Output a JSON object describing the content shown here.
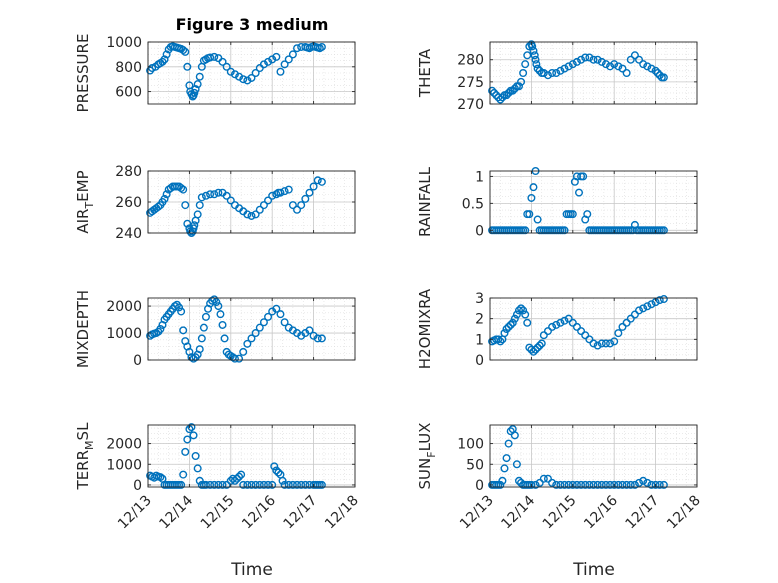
{
  "figure": {
    "title": "Figure 3 medium",
    "xlabel": "Time",
    "marker_color": "#0072BD",
    "axis_color": "#262626",
    "grid_color": "#c8c8c8"
  },
  "chart_data": [
    {
      "type": "scatter",
      "ylabel": "PRESSURE",
      "xlim": [
        0,
        5
      ],
      "ylim": [
        500,
        1000
      ],
      "xticks": [
        0,
        1,
        2,
        3,
        4,
        5
      ],
      "yticks": [
        600,
        800,
        1000
      ],
      "xticklabels": [
        "",
        "",
        "",
        "",
        "",
        ""
      ],
      "x": [
        0.05,
        0.1,
        0.18,
        0.25,
        0.3,
        0.35,
        0.4,
        0.45,
        0.5,
        0.55,
        0.6,
        0.65,
        0.7,
        0.75,
        0.8,
        0.85,
        0.9,
        0.95,
        1.0,
        1.02,
        1.05,
        1.08,
        1.1,
        1.12,
        1.15,
        1.2,
        1.25,
        1.3,
        1.35,
        1.4,
        1.45,
        1.5,
        1.6,
        1.7,
        1.8,
        1.9,
        2.0,
        2.1,
        2.2,
        2.3,
        2.4,
        2.5,
        2.6,
        2.7,
        2.8,
        2.9,
        3.0,
        3.1,
        3.2,
        3.3,
        3.4,
        3.5,
        3.6,
        3.7,
        3.8,
        3.85,
        3.9,
        3.95,
        4.0,
        4.05,
        4.1,
        4.15,
        4.2
      ],
      "y": [
        770,
        790,
        800,
        820,
        830,
        840,
        860,
        900,
        940,
        960,
        965,
        960,
        955,
        950,
        945,
        935,
        920,
        800,
        650,
        600,
        580,
        560,
        570,
        590,
        620,
        660,
        720,
        800,
        850,
        860,
        870,
        875,
        880,
        870,
        840,
        800,
        760,
        740,
        720,
        700,
        690,
        710,
        750,
        790,
        820,
        840,
        860,
        880,
        760,
        820,
        860,
        900,
        950,
        960,
        960,
        955,
        950,
        960,
        965,
        960,
        955,
        950,
        960
      ]
    },
    {
      "type": "scatter",
      "ylabel": "THETA",
      "xlim": [
        0,
        5
      ],
      "ylim": [
        270,
        284
      ],
      "xticks": [
        0,
        1,
        2,
        3,
        4,
        5
      ],
      "yticks": [
        270,
        275,
        280
      ],
      "xticklabels": [
        "",
        "",
        "",
        "",
        "",
        ""
      ],
      "x": [
        0.05,
        0.1,
        0.15,
        0.2,
        0.25,
        0.3,
        0.35,
        0.4,
        0.45,
        0.5,
        0.55,
        0.6,
        0.65,
        0.7,
        0.75,
        0.8,
        0.85,
        0.9,
        0.95,
        1.0,
        1.02,
        1.05,
        1.08,
        1.1,
        1.12,
        1.15,
        1.2,
        1.25,
        1.3,
        1.4,
        1.5,
        1.6,
        1.7,
        1.8,
        1.9,
        2.0,
        2.1,
        2.2,
        2.3,
        2.4,
        2.5,
        2.6,
        2.7,
        2.8,
        2.9,
        3.0,
        3.1,
        3.2,
        3.3,
        3.4,
        3.5,
        3.6,
        3.7,
        3.8,
        3.9,
        4.0,
        4.05,
        4.1,
        4.15,
        4.2
      ],
      "y": [
        273,
        272.5,
        272,
        271.5,
        271,
        271.5,
        272,
        272,
        272.5,
        273,
        273,
        273.5,
        274,
        274,
        275,
        277,
        279,
        281,
        283,
        283.5,
        283,
        282,
        281,
        280,
        279,
        278,
        277.5,
        277,
        277,
        276.5,
        277,
        277,
        277.5,
        278,
        278.5,
        279,
        279.5,
        280,
        280.5,
        280.5,
        280,
        280,
        279.5,
        279,
        278.5,
        279,
        278.5,
        278,
        277,
        280,
        281,
        280,
        279,
        278.5,
        278,
        277.5,
        277,
        276.5,
        276,
        276
      ]
    },
    {
      "type": "scatter",
      "ylabel": "AIR_TEMP",
      "xlim": [
        0,
        5
      ],
      "ylim": [
        240,
        280
      ],
      "xticks": [
        0,
        1,
        2,
        3,
        4,
        5
      ],
      "yticks": [
        240,
        260,
        280
      ],
      "xticklabels": [
        "",
        "",
        "",
        "",
        "",
        ""
      ],
      "x": [
        0.05,
        0.1,
        0.15,
        0.2,
        0.25,
        0.3,
        0.35,
        0.4,
        0.45,
        0.5,
        0.55,
        0.6,
        0.65,
        0.7,
        0.75,
        0.8,
        0.85,
        0.9,
        0.95,
        1.0,
        1.02,
        1.05,
        1.08,
        1.1,
        1.12,
        1.15,
        1.2,
        1.25,
        1.3,
        1.4,
        1.5,
        1.6,
        1.7,
        1.8,
        1.9,
        2.0,
        2.1,
        2.2,
        2.3,
        2.4,
        2.5,
        2.6,
        2.7,
        2.8,
        2.9,
        3.0,
        3.1,
        3.15,
        3.2,
        3.3,
        3.4,
        3.5,
        3.6,
        3.7,
        3.8,
        3.9,
        4.0,
        4.1,
        4.2
      ],
      "y": [
        253,
        254,
        255,
        256,
        257,
        258,
        260,
        262,
        265,
        268,
        269,
        270,
        270,
        270,
        270,
        269,
        268,
        258,
        246,
        243,
        241,
        240,
        241,
        243,
        245,
        248,
        252,
        258,
        263,
        264,
        265,
        265,
        266,
        266,
        264,
        261,
        258,
        256,
        254,
        252,
        251,
        252,
        255,
        258,
        261,
        264,
        265,
        266,
        266,
        267,
        268,
        258,
        255,
        258,
        262,
        266,
        270,
        274,
        273
      ]
    },
    {
      "type": "scatter",
      "ylabel": "RAINFALL",
      "xlim": [
        0,
        5
      ],
      "ylim": [
        -0.05,
        1.1
      ],
      "xticks": [
        0,
        1,
        2,
        3,
        4,
        5
      ],
      "yticks": [
        0,
        0.5,
        1
      ],
      "xticklabels": [
        "",
        "",
        "",
        "",
        "",
        ""
      ],
      "x": [
        0.05,
        0.1,
        0.15,
        0.2,
        0.25,
        0.3,
        0.35,
        0.4,
        0.45,
        0.5,
        0.55,
        0.6,
        0.65,
        0.7,
        0.75,
        0.8,
        0.85,
        0.9,
        0.95,
        1.0,
        1.05,
        1.1,
        1.15,
        1.2,
        1.25,
        1.3,
        1.35,
        1.4,
        1.45,
        1.5,
        1.55,
        1.6,
        1.65,
        1.7,
        1.75,
        1.8,
        1.85,
        1.9,
        1.95,
        2.0,
        2.05,
        2.1,
        2.15,
        2.2,
        2.25,
        2.3,
        2.35,
        2.4,
        2.45,
        2.5,
        2.55,
        2.6,
        2.65,
        2.7,
        2.75,
        2.8,
        2.85,
        2.9,
        2.95,
        3.0,
        3.05,
        3.1,
        3.15,
        3.2,
        3.25,
        3.3,
        3.35,
        3.4,
        3.45,
        3.5,
        3.55,
        3.6,
        3.65,
        3.7,
        3.75,
        3.8,
        3.85,
        3.9,
        3.95,
        4.0,
        4.05,
        4.1,
        4.15,
        4.2
      ],
      "y": [
        0,
        0,
        0,
        0,
        0,
        0,
        0,
        0,
        0,
        0,
        0,
        0,
        0,
        0,
        0,
        0,
        0,
        0.3,
        0.3,
        0.6,
        0.8,
        1.1,
        0.2,
        0,
        0,
        0,
        0,
        0,
        0,
        0,
        0,
        0,
        0,
        0,
        0,
        0,
        0.3,
        0.3,
        0.3,
        0.3,
        0.9,
        1.0,
        0.7,
        1.0,
        1.0,
        0.2,
        0.3,
        0,
        0,
        0,
        0,
        0,
        0,
        0,
        0,
        0,
        0,
        0,
        0,
        0,
        0,
        0,
        0,
        0,
        0,
        0,
        0,
        0,
        0,
        0.1,
        0,
        0,
        0,
        0,
        0,
        0,
        0,
        0,
        0,
        0,
        0,
        0,
        0,
        0
      ]
    },
    {
      "type": "scatter",
      "ylabel": "MIXDEPTH",
      "xlim": [
        0,
        5
      ],
      "ylim": [
        0,
        2300
      ],
      "xticks": [
        0,
        1,
        2,
        3,
        4,
        5
      ],
      "yticks": [
        0,
        1000,
        2000
      ],
      "xticklabels": [
        "",
        "",
        "",
        "",
        "",
        ""
      ],
      "x": [
        0.05,
        0.1,
        0.15,
        0.2,
        0.25,
        0.3,
        0.35,
        0.4,
        0.45,
        0.5,
        0.55,
        0.6,
        0.65,
        0.7,
        0.75,
        0.8,
        0.85,
        0.9,
        0.95,
        1.0,
        1.05,
        1.1,
        1.15,
        1.2,
        1.25,
        1.3,
        1.35,
        1.4,
        1.45,
        1.5,
        1.55,
        1.6,
        1.65,
        1.7,
        1.75,
        1.8,
        1.85,
        1.9,
        1.95,
        2.0,
        2.05,
        2.1,
        2.2,
        2.3,
        2.4,
        2.5,
        2.6,
        2.7,
        2.8,
        2.9,
        3.0,
        3.1,
        3.2,
        3.3,
        3.4,
        3.5,
        3.6,
        3.7,
        3.8,
        3.9,
        4.0,
        4.1,
        4.2
      ],
      "y": [
        900,
        950,
        980,
        1000,
        1050,
        1150,
        1300,
        1500,
        1600,
        1700,
        1800,
        1900,
        2000,
        2050,
        1950,
        1800,
        1100,
        700,
        500,
        300,
        100,
        50,
        100,
        200,
        400,
        800,
        1200,
        1600,
        1900,
        2100,
        2200,
        2250,
        2150,
        2000,
        1700,
        1300,
        800,
        300,
        200,
        150,
        100,
        50,
        50,
        300,
        600,
        800,
        1000,
        1200,
        1400,
        1600,
        1800,
        1900,
        1700,
        1400,
        1200,
        1100,
        1000,
        900,
        1000,
        1100,
        900,
        800,
        800
      ]
    },
    {
      "type": "scatter",
      "ylabel": "H2OMIXRA",
      "xlim": [
        0,
        5
      ],
      "ylim": [
        0,
        3
      ],
      "xticks": [
        0,
        1,
        2,
        3,
        4,
        5
      ],
      "yticks": [
        0,
        1,
        2,
        3
      ],
      "xticklabels": [
        "",
        "",
        "",
        "",
        "",
        ""
      ],
      "x": [
        0.05,
        0.1,
        0.15,
        0.2,
        0.25,
        0.3,
        0.35,
        0.4,
        0.45,
        0.5,
        0.55,
        0.6,
        0.65,
        0.7,
        0.75,
        0.8,
        0.85,
        0.9,
        0.95,
        1.0,
        1.05,
        1.1,
        1.15,
        1.2,
        1.25,
        1.3,
        1.4,
        1.5,
        1.6,
        1.7,
        1.8,
        1.9,
        2.0,
        2.1,
        2.2,
        2.3,
        2.4,
        2.5,
        2.6,
        2.7,
        2.8,
        2.9,
        3.0,
        3.1,
        3.2,
        3.3,
        3.4,
        3.5,
        3.6,
        3.7,
        3.8,
        3.9,
        4.0,
        4.1,
        4.2
      ],
      "y": [
        0.9,
        0.95,
        1.0,
        1.0,
        0.9,
        1.0,
        1.3,
        1.5,
        1.6,
        1.7,
        1.8,
        2.0,
        2.2,
        2.4,
        2.5,
        2.4,
        2.2,
        1.8,
        0.6,
        0.5,
        0.4,
        0.5,
        0.6,
        0.7,
        0.8,
        1.2,
        1.4,
        1.6,
        1.7,
        1.8,
        1.9,
        2.0,
        1.8,
        1.6,
        1.4,
        1.2,
        1.0,
        0.8,
        0.7,
        0.8,
        0.8,
        0.8,
        0.9,
        1.3,
        1.6,
        1.8,
        2.0,
        2.2,
        2.4,
        2.5,
        2.6,
        2.7,
        2.8,
        2.9,
        2.95
      ]
    },
    {
      "type": "scatter",
      "ylabel": "TERR_MSL",
      "xlim": [
        0,
        5
      ],
      "ylim": [
        -100,
        2900
      ],
      "xticks": [
        0,
        1,
        2,
        3,
        4,
        5
      ],
      "yticks": [
        0,
        1000,
        2000
      ],
      "xticklabels": [
        "12/13",
        "12/14",
        "12/15",
        "12/16",
        "12/17",
        "12/18"
      ],
      "x": [
        0.05,
        0.1,
        0.15,
        0.2,
        0.25,
        0.3,
        0.35,
        0.4,
        0.45,
        0.5,
        0.55,
        0.6,
        0.65,
        0.7,
        0.75,
        0.8,
        0.85,
        0.9,
        0.95,
        1.0,
        1.05,
        1.1,
        1.15,
        1.2,
        1.25,
        1.3,
        1.35,
        1.4,
        1.5,
        1.6,
        1.7,
        1.8,
        1.9,
        2.0,
        2.05,
        2.1,
        2.15,
        2.2,
        2.25,
        2.3,
        2.4,
        2.5,
        2.6,
        2.7,
        2.8,
        2.9,
        3.0,
        3.05,
        3.1,
        3.15,
        3.2,
        3.25,
        3.3,
        3.4,
        3.5,
        3.6,
        3.7,
        3.8,
        3.9,
        4.0,
        4.05,
        4.1,
        4.15,
        4.2
      ],
      "y": [
        450,
        400,
        350,
        450,
        400,
        380,
        300,
        0,
        0,
        0,
        0,
        0,
        0,
        0,
        0,
        0,
        500,
        1600,
        2200,
        2700,
        2800,
        2400,
        1400,
        800,
        200,
        0,
        0,
        0,
        0,
        0,
        0,
        0,
        0,
        200,
        300,
        200,
        300,
        400,
        500,
        0,
        0,
        0,
        0,
        0,
        0,
        0,
        0,
        900,
        700,
        600,
        500,
        200,
        0,
        0,
        0,
        0,
        0,
        0,
        0,
        0,
        0,
        0,
        0,
        0
      ]
    },
    {
      "type": "scatter",
      "ylabel": "SUN_FLUX",
      "xlim": [
        0,
        5
      ],
      "ylim": [
        -5,
        145
      ],
      "xticks": [
        0,
        1,
        2,
        3,
        4,
        5
      ],
      "yticks": [
        0,
        50,
        100
      ],
      "xticklabels": [
        "12/13",
        "12/14",
        "12/15",
        "12/16",
        "12/17",
        "12/18"
      ],
      "x": [
        0.05,
        0.1,
        0.15,
        0.2,
        0.25,
        0.3,
        0.35,
        0.4,
        0.45,
        0.5,
        0.55,
        0.6,
        0.65,
        0.7,
        0.75,
        0.8,
        0.85,
        0.9,
        0.95,
        1.0,
        1.1,
        1.2,
        1.3,
        1.4,
        1.5,
        1.6,
        1.7,
        1.8,
        1.9,
        2.0,
        2.1,
        2.2,
        2.3,
        2.4,
        2.5,
        2.6,
        2.7,
        2.8,
        2.9,
        3.0,
        3.1,
        3.2,
        3.3,
        3.4,
        3.5,
        3.6,
        3.7,
        3.8,
        3.9,
        4.0,
        4.1,
        4.2
      ],
      "y": [
        0,
        0,
        0,
        0,
        0,
        10,
        40,
        65,
        100,
        130,
        135,
        120,
        50,
        10,
        5,
        0,
        0,
        0,
        0,
        0,
        0,
        5,
        15,
        15,
        5,
        0,
        0,
        0,
        0,
        0,
        0,
        0,
        0,
        0,
        0,
        0,
        0,
        0,
        0,
        0,
        0,
        0,
        0,
        0,
        0,
        5,
        10,
        5,
        0,
        0,
        0,
        0
      ]
    }
  ]
}
